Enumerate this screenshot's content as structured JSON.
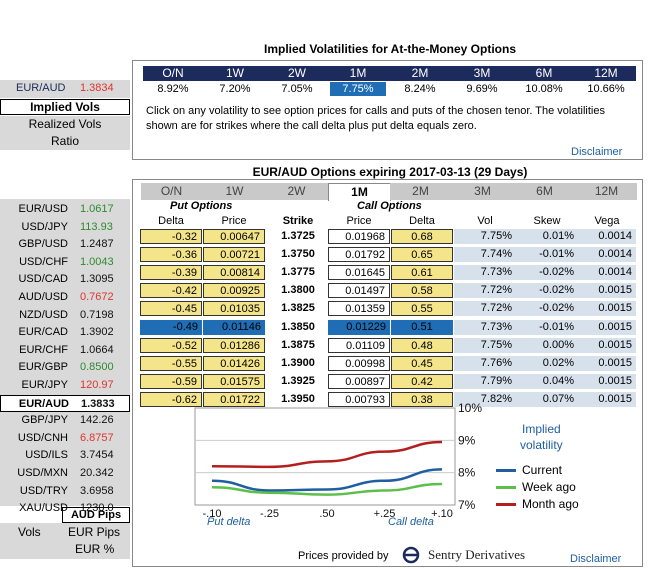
{
  "header": {
    "title": "Implied Volatilities for At-the-Money Options",
    "tenors": [
      "O/N",
      "1W",
      "2W",
      "1M",
      "2M",
      "3M",
      "6M",
      "12M"
    ],
    "vols": [
      "8.92%",
      "7.20%",
      "7.05%",
      "7.75%",
      "8.24%",
      "9.69%",
      "10.08%",
      "10.66%"
    ],
    "selected_index": 3,
    "info": "Click on any volatility to see option prices for calls and puts of the chosen tenor. The volatilities shown are for strikes where the call delta plus put delta equals zero.",
    "disclaimer": "Disclaimer"
  },
  "sidebar": {
    "pair": "EUR/AUD",
    "rate": "1.3834",
    "menu": [
      "Implied Vols",
      "Realized Vols",
      "Ratio"
    ],
    "pairs": [
      {
        "pair": "EUR/USD",
        "rate": "1.0617",
        "color": "green"
      },
      {
        "pair": "USD/JPY",
        "rate": "113.93",
        "color": "green"
      },
      {
        "pair": "GBP/USD",
        "rate": "1.2487",
        "color": "dark"
      },
      {
        "pair": "USD/CHF",
        "rate": "1.0043",
        "color": "green"
      },
      {
        "pair": "USD/CAD",
        "rate": "1.3095",
        "color": "dark"
      },
      {
        "pair": "AUD/USD",
        "rate": "0.7672",
        "color": "red"
      },
      {
        "pair": "NZD/USD",
        "rate": "0.7198",
        "color": "dark"
      },
      {
        "pair": "EUR/CAD",
        "rate": "1.3902",
        "color": "dark"
      },
      {
        "pair": "EUR/CHF",
        "rate": "1.0664",
        "color": "dark"
      },
      {
        "pair": "EUR/GBP",
        "rate": "0.8500",
        "color": "green"
      },
      {
        "pair": "EUR/JPY",
        "rate": "120.97",
        "color": "red"
      },
      {
        "pair": "EUR/AUD",
        "rate": "1.3833",
        "color": "dark"
      },
      {
        "pair": "GBP/JPY",
        "rate": "142.26",
        "color": "dark"
      },
      {
        "pair": "USD/CNH",
        "rate": "6.8757",
        "color": "red"
      },
      {
        "pair": "USD/ILS",
        "rate": "3.7454",
        "color": "dark"
      },
      {
        "pair": "USD/MXN",
        "rate": "20.342",
        "color": "dark"
      },
      {
        "pair": "USD/TRY",
        "rate": "3.6958",
        "color": "dark"
      },
      {
        "pair": "XAU/USD",
        "rate": "1230.0",
        "color": "dark"
      }
    ],
    "pips_label": "AUD Pips",
    "vols_label": "Vols",
    "eur_pips": "EUR Pips",
    "eur_pct": "EUR %"
  },
  "options": {
    "title": "EUR/AUD Options expiring 2017-03-13 (29 Days)",
    "tabs": [
      "O/N",
      "1W",
      "2W",
      "1M",
      "2M",
      "3M",
      "6M",
      "12M"
    ],
    "active_tab": 3,
    "put_label": "Put Options",
    "call_label": "Call Options",
    "col_headers": {
      "delta": "Delta",
      "price": "Price",
      "strike": "Strike",
      "cprice": "Price",
      "cdelta": "Delta",
      "vol": "Vol",
      "skew": "Skew",
      "vega": "Vega"
    },
    "rows": [
      {
        "pdelta": "-0.32",
        "pprice": "0.00647",
        "strike": "1.3725",
        "cprice": "0.01968",
        "cdelta": "0.68",
        "vol": "7.75%",
        "skew": "0.01%",
        "vega": "0.0014"
      },
      {
        "pdelta": "-0.36",
        "pprice": "0.00721",
        "strike": "1.3750",
        "cprice": "0.01792",
        "cdelta": "0.65",
        "vol": "7.74%",
        "skew": "-0.01%",
        "vega": "0.0014"
      },
      {
        "pdelta": "-0.39",
        "pprice": "0.00814",
        "strike": "1.3775",
        "cprice": "0.01645",
        "cdelta": "0.61",
        "vol": "7.73%",
        "skew": "-0.02%",
        "vega": "0.0014"
      },
      {
        "pdelta": "-0.42",
        "pprice": "0.00925",
        "strike": "1.3800",
        "cprice": "0.01497",
        "cdelta": "0.58",
        "vol": "7.72%",
        "skew": "-0.02%",
        "vega": "0.0015"
      },
      {
        "pdelta": "-0.45",
        "pprice": "0.01035",
        "strike": "1.3825",
        "cprice": "0.01359",
        "cdelta": "0.55",
        "vol": "7.72%",
        "skew": "-0.02%",
        "vega": "0.0015"
      },
      {
        "pdelta": "-0.49",
        "pprice": "0.01146",
        "strike": "1.3850",
        "cprice": "0.01229",
        "cdelta": "0.51",
        "vol": "7.73%",
        "skew": "-0.01%",
        "vega": "0.0015"
      },
      {
        "pdelta": "-0.52",
        "pprice": "0.01286",
        "strike": "1.3875",
        "cprice": "0.01109",
        "cdelta": "0.48",
        "vol": "7.75%",
        "skew": "0.00%",
        "vega": "0.0015"
      },
      {
        "pdelta": "-0.55",
        "pprice": "0.01426",
        "strike": "1.3900",
        "cprice": "0.00998",
        "cdelta": "0.45",
        "vol": "7.76%",
        "skew": "0.02%",
        "vega": "0.0015"
      },
      {
        "pdelta": "-0.59",
        "pprice": "0.01575",
        "strike": "1.3925",
        "cprice": "0.00897",
        "cdelta": "0.42",
        "vol": "7.79%",
        "skew": "0.04%",
        "vega": "0.0015"
      },
      {
        "pdelta": "-0.62",
        "pprice": "0.01722",
        "strike": "1.3950",
        "cprice": "0.00793",
        "cdelta": "0.38",
        "vol": "7.82%",
        "skew": "0.07%",
        "vega": "0.0015"
      }
    ],
    "selected_row": 5
  },
  "chart": {
    "title_line1": "Implied",
    "title_line2": "volatility",
    "yticks": [
      "10%",
      "9%",
      "8%",
      "7%"
    ],
    "xticks": [
      "-.10",
      "-.25",
      ".50",
      "+.25",
      "+.10"
    ],
    "put_delta": "Put delta",
    "call_delta": "Call delta",
    "legend": [
      {
        "name": "Current",
        "color": "#1f5fa0"
      },
      {
        "name": "Week ago",
        "color": "#5cbf4a"
      },
      {
        "name": "Month ago",
        "color": "#b51e1e"
      }
    ]
  },
  "chart_data": {
    "type": "line",
    "x": [
      "-.10",
      "-.25",
      ".50",
      "+.25",
      "+.10"
    ],
    "ylim": [
      7,
      10
    ],
    "series": [
      {
        "name": "Current",
        "values": [
          7.75,
          7.45,
          7.48,
          7.75,
          8.1
        ]
      },
      {
        "name": "Week ago",
        "values": [
          7.55,
          7.38,
          7.32,
          7.45,
          7.65
        ]
      },
      {
        "name": "Month ago",
        "values": [
          8.2,
          8.18,
          8.35,
          8.65,
          8.95
        ]
      }
    ]
  },
  "footer": {
    "prices_by": "Prices provided by",
    "company": "Sentry Derivatives",
    "disclaimer": "Disclaimer"
  }
}
